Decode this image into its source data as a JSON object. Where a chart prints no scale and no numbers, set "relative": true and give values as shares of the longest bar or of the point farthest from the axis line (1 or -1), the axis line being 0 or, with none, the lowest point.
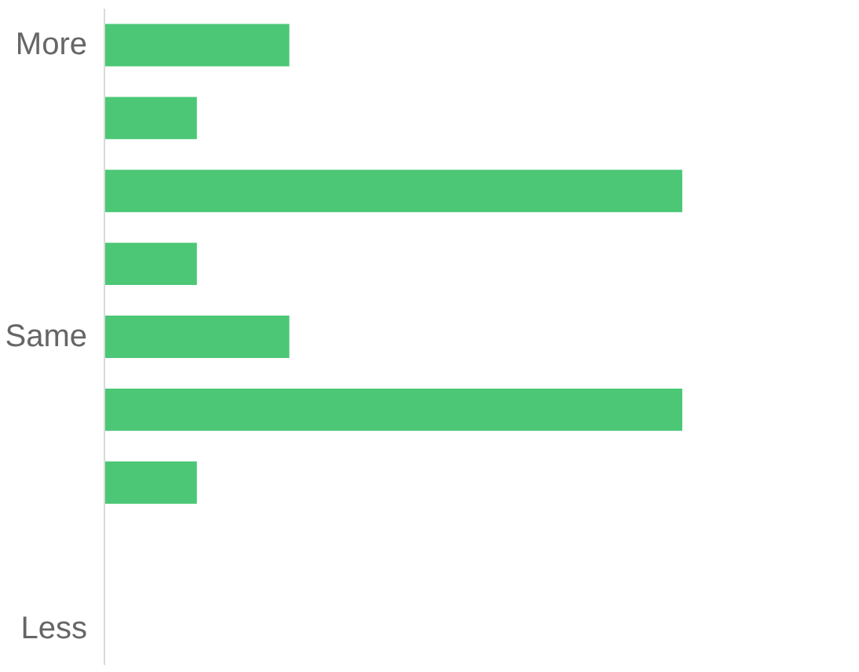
{
  "chart_data": {
    "type": "bar",
    "orientation": "horizontal",
    "relative": true,
    "color": "#4bc776",
    "categories": [
      "More",
      null,
      null,
      null,
      "Same",
      null,
      null,
      null,
      "Less"
    ],
    "values": [
      0.32,
      0.16,
      1,
      0.16,
      0.32,
      1,
      0.16,
      0,
      0
    ]
  }
}
